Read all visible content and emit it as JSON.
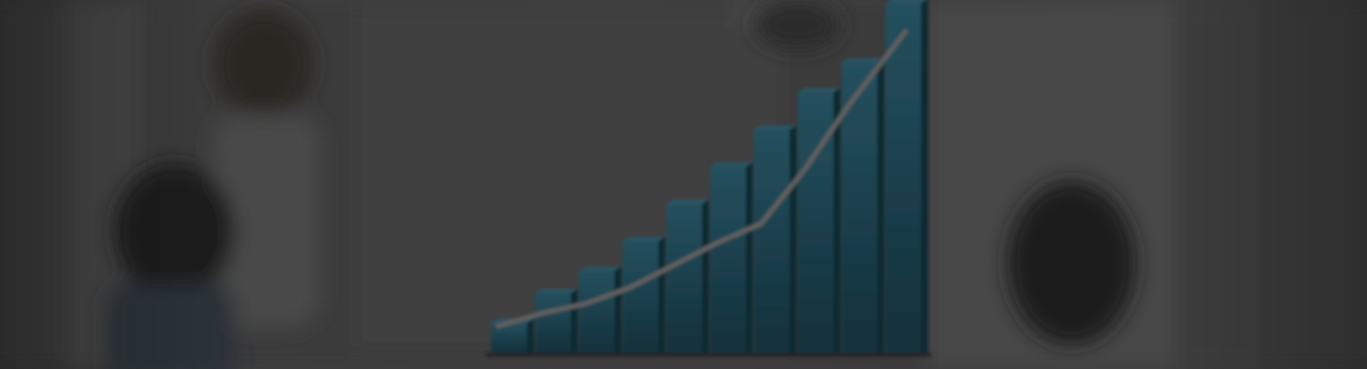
{
  "scene": {
    "description_hidden": "",
    "chart_data": {
      "type": "bar",
      "categories": [
        "",
        "",
        "",
        "",
        "",
        "",
        "",
        "",
        "",
        ""
      ],
      "values": [
        4,
        8,
        11,
        15,
        20,
        25,
        30,
        35,
        39,
        47
      ],
      "trend": [
        3,
        7,
        10,
        15,
        22,
        29,
        35,
        52,
        72,
        95
      ],
      "colors": {
        "bar": "#1a3f4c",
        "bar_side": "#102a33",
        "bar_top": "#2c5563",
        "line": "#5f5f5f",
        "background": "#3a3a3a"
      }
    }
  }
}
